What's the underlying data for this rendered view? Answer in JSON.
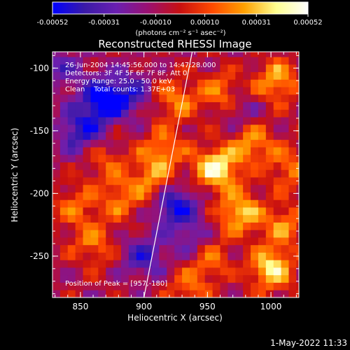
{
  "chart_data": {
    "type": "heatmap",
    "title": "Reconstructed RHESSI Image",
    "xlabel": "Heliocentric X (arcsec)",
    "ylabel": "Heliocentric Y (arcsec)",
    "xlim": [
      828,
      1022
    ],
    "ylim": [
      -283,
      -87
    ],
    "x_ticks": [
      850,
      900,
      950,
      1000
    ],
    "y_ticks": [
      -100,
      -150,
      -200,
      -250
    ],
    "colorbar": {
      "range": [
        -0.00052,
        0.00052
      ],
      "tick_labels": [
        "-0.00052",
        "-0.00031",
        "-0.00010",
        "0.00010",
        "0.00031",
        "0.00052"
      ],
      "unit_label": "(photons cm⁻² s⁻¹ asec⁻²)",
      "colormap": [
        "#0000ff",
        "#3a1aa8",
        "#6a1fb0",
        "#9b1070",
        "#c81010",
        "#ff4a00",
        "#ffa000",
        "#ffff90",
        "#ffffff"
      ]
    },
    "annotations": [
      "26-Jun-2004 14:45:56.000 to 14:47:28.000",
      "Detectors: 3F 4F 5F 6F 7F 8F, Att 0",
      "Energy Range: 25.0 - 50.0 keV",
      "Clean    Total counts: 1.37E+03"
    ],
    "peak_label": "Position of Peak = [957,-180]",
    "peak": [
      957,
      -180
    ],
    "limb_line": [
      [
        900,
        -283
      ],
      [
        938,
        -87
      ]
    ],
    "hotspots": [
      {
        "x": 957,
        "y": -180,
        "v": 1.0
      },
      {
        "x": 1000,
        "y": -260,
        "v": 0.9
      },
      {
        "x": 1005,
        "y": -110,
        "v": 0.7
      },
      {
        "x": 975,
        "y": -215,
        "v": 0.8
      },
      {
        "x": 985,
        "y": -160,
        "v": 0.65
      },
      {
        "x": 925,
        "y": -125,
        "v": 0.55
      },
      {
        "x": 915,
        "y": -165,
        "v": 0.6
      },
      {
        "x": 905,
        "y": -190,
        "v": 0.55
      },
      {
        "x": 950,
        "y": -250,
        "v": 0.6
      },
      {
        "x": 1010,
        "y": -225,
        "v": 0.55
      },
      {
        "x": 860,
        "y": -240,
        "v": 0.5
      },
      {
        "x": 845,
        "y": -210,
        "v": 0.45
      },
      {
        "x": 960,
        "y": -120,
        "v": 0.55
      },
      {
        "x": 880,
        "y": -205,
        "v": 0.45
      },
      {
        "x": 935,
        "y": -275,
        "v": 0.45
      },
      {
        "x": 1015,
        "y": -180,
        "v": 0.5
      },
      {
        "x": 870,
        "y": -175,
        "v": 0.4
      }
    ],
    "coldspots": [
      {
        "x": 868,
        "y": -125,
        "v": -1.0
      },
      {
        "x": 850,
        "y": -150,
        "v": -0.7
      },
      {
        "x": 925,
        "y": -210,
        "v": -0.8
      },
      {
        "x": 900,
        "y": -250,
        "v": -0.6
      },
      {
        "x": 890,
        "y": -120,
        "v": -0.5
      },
      {
        "x": 940,
        "y": -240,
        "v": -0.5
      },
      {
        "x": 835,
        "y": -100,
        "v": -0.4
      },
      {
        "x": 975,
        "y": -135,
        "v": -0.3
      }
    ]
  },
  "footer_timestamp": "1-May-2022 11:33"
}
